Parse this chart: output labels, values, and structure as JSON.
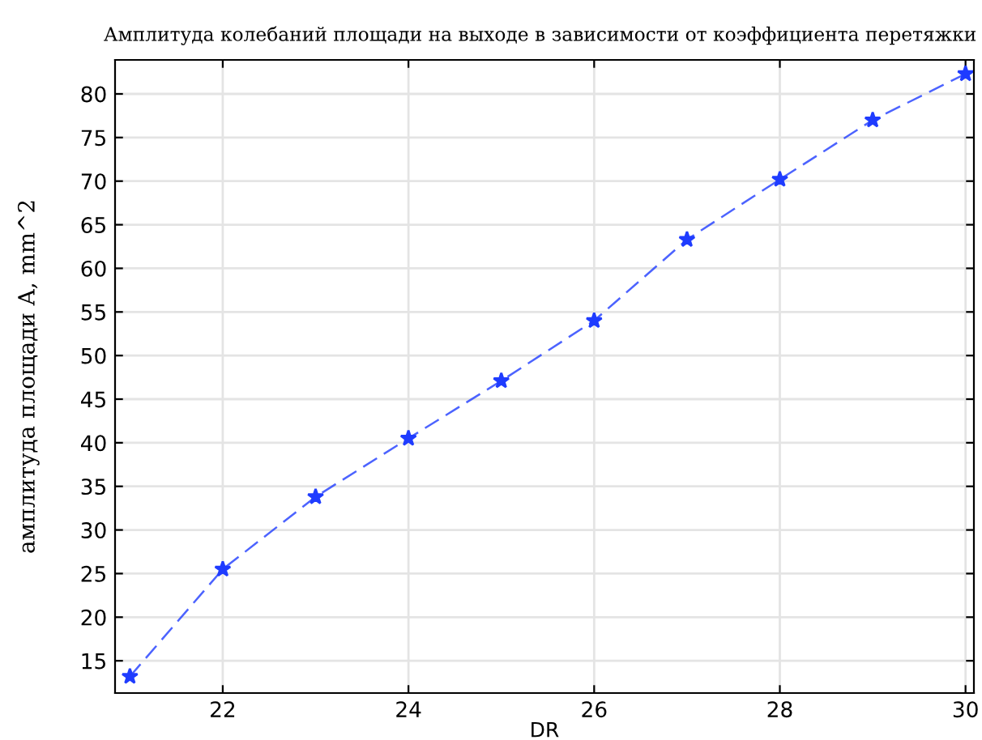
{
  "chart_data": {
    "type": "line",
    "title": "Амплитуда колебаний площади на выходе в зависимости от коэффициента перетяжки",
    "xlabel": "DR",
    "ylabel": "амплитуда площади A, mm^2",
    "x": [
      21,
      22,
      23,
      24,
      25,
      26,
      27,
      28,
      29,
      30
    ],
    "series": [
      {
        "color": "#1f3cff",
        "values": [
          13.2,
          25.5,
          33.8,
          40.5,
          47.1,
          54.0,
          63.3,
          70.2,
          77.0,
          82.3
        ]
      }
    ],
    "xlim": [
      20.84,
      30.09
    ],
    "ylim": [
      11.3,
      83.9
    ],
    "xticks": [
      22,
      24,
      26,
      28,
      30
    ],
    "yticks": [
      15,
      20,
      25,
      30,
      35,
      40,
      45,
      50,
      55,
      60,
      65,
      70,
      75,
      80
    ],
    "grid": true,
    "marker": "star",
    "line_style": "dashed"
  }
}
